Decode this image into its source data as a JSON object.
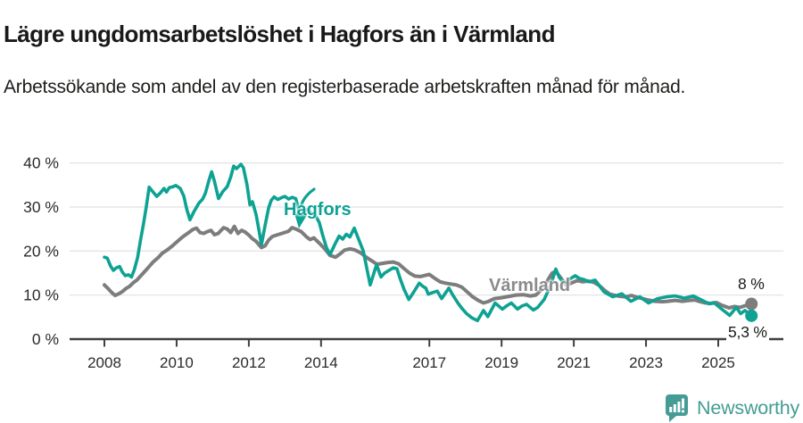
{
  "chart_data": {
    "type": "line",
    "title": "Lägre ungdomsarbetslöshet i Hagfors än i Värmland",
    "subtitle": "Arbetssökande som andel av den registerbaserade arbetskraften månad för månad.",
    "unit": "percent",
    "grid": "horizontal",
    "legend": "inline-labels-on-chart",
    "x_axis": {
      "range": [
        2008,
        2026.3
      ],
      "tick_years": [
        2008,
        2010,
        2012,
        2014,
        2017,
        2019,
        2021,
        2023,
        2025
      ],
      "tick_labels": [
        "2008",
        "2010",
        "2012",
        "2014",
        "2017",
        "2019",
        "2021",
        "2023",
        "2025"
      ]
    },
    "y_axis": {
      "range": [
        0,
        40
      ],
      "tick_values": [
        0,
        10,
        20,
        30,
        40
      ],
      "tick_labels": [
        "0 %",
        "10 %",
        "20 %",
        "30 %",
        "40 %"
      ]
    },
    "series": [
      {
        "name": "Hagfors",
        "color": "#0ea293",
        "label_color": "#0ea293",
        "end_label": "5,3 %",
        "last_value": 5.3,
        "points": [
          [
            2008.0,
            18.6
          ],
          [
            2008.08,
            18.4
          ],
          [
            2008.17,
            16.6
          ],
          [
            2008.25,
            15.6
          ],
          [
            2008.33,
            16.2
          ],
          [
            2008.42,
            16.5
          ],
          [
            2008.5,
            15.2
          ],
          [
            2008.58,
            14.4
          ],
          [
            2008.67,
            14.6
          ],
          [
            2008.75,
            14.1
          ],
          [
            2008.83,
            15.8
          ],
          [
            2008.92,
            18.5
          ],
          [
            2009.0,
            22.5
          ],
          [
            2009.08,
            26.0
          ],
          [
            2009.16,
            30.0
          ],
          [
            2009.24,
            34.5
          ],
          [
            2009.33,
            33.6
          ],
          [
            2009.45,
            32.4
          ],
          [
            2009.55,
            33.2
          ],
          [
            2009.65,
            34.2
          ],
          [
            2009.72,
            33.4
          ],
          [
            2009.8,
            34.4
          ],
          [
            2009.9,
            34.6
          ],
          [
            2009.98,
            34.9
          ],
          [
            2010.1,
            34.2
          ],
          [
            2010.2,
            32.5
          ],
          [
            2010.28,
            29.5
          ],
          [
            2010.37,
            27.1
          ],
          [
            2010.47,
            28.8
          ],
          [
            2010.62,
            30.9
          ],
          [
            2010.72,
            31.8
          ],
          [
            2010.8,
            33.2
          ],
          [
            2010.9,
            36.2
          ],
          [
            2010.97,
            38.0
          ],
          [
            2011.05,
            35.8
          ],
          [
            2011.16,
            31.9
          ],
          [
            2011.28,
            33.5
          ],
          [
            2011.4,
            34.6
          ],
          [
            2011.5,
            36.8
          ],
          [
            2011.58,
            39.3
          ],
          [
            2011.66,
            38.7
          ],
          [
            2011.78,
            39.7
          ],
          [
            2011.85,
            38.9
          ],
          [
            2011.95,
            35.0
          ],
          [
            2012.03,
            30.5
          ],
          [
            2012.1,
            31.2
          ],
          [
            2012.2,
            28.3
          ],
          [
            2012.28,
            24.8
          ],
          [
            2012.35,
            21.4
          ],
          [
            2012.45,
            25.8
          ],
          [
            2012.55,
            29.8
          ],
          [
            2012.62,
            31.5
          ],
          [
            2012.7,
            32.3
          ],
          [
            2012.8,
            31.7
          ],
          [
            2012.9,
            32.1
          ],
          [
            2013.0,
            32.4
          ],
          [
            2013.1,
            31.8
          ],
          [
            2013.2,
            32.2
          ],
          [
            2013.3,
            31.9
          ],
          [
            2013.44,
            27.6
          ],
          [
            2013.55,
            29.2
          ],
          [
            2013.65,
            29.4
          ],
          [
            2013.75,
            28.4
          ],
          [
            2013.85,
            28.0
          ],
          [
            2013.95,
            26.5
          ],
          [
            2014.05,
            23.5
          ],
          [
            2014.15,
            20.8
          ],
          [
            2014.25,
            19.2
          ],
          [
            2014.4,
            21.8
          ],
          [
            2014.5,
            23.4
          ],
          [
            2014.6,
            22.7
          ],
          [
            2014.7,
            23.8
          ],
          [
            2014.8,
            23.2
          ],
          [
            2014.92,
            25.2
          ],
          [
            2015.05,
            22.5
          ],
          [
            2015.17,
            20.0
          ],
          [
            2015.36,
            12.3
          ],
          [
            2015.54,
            16.9
          ],
          [
            2015.66,
            14.1
          ],
          [
            2015.76,
            15.0
          ],
          [
            2015.86,
            15.5
          ],
          [
            2016.0,
            16.2
          ],
          [
            2016.1,
            16.0
          ],
          [
            2016.2,
            13.5
          ],
          [
            2016.3,
            11.3
          ],
          [
            2016.43,
            9.0
          ],
          [
            2016.56,
            10.6
          ],
          [
            2016.72,
            12.7
          ],
          [
            2016.82,
            12.0
          ],
          [
            2016.9,
            11.6
          ],
          [
            2016.97,
            10.2
          ],
          [
            2017.1,
            10.6
          ],
          [
            2017.22,
            10.9
          ],
          [
            2017.34,
            9.2
          ],
          [
            2017.45,
            10.5
          ],
          [
            2017.54,
            11.6
          ],
          [
            2017.65,
            10.0
          ],
          [
            2017.79,
            8.2
          ],
          [
            2017.9,
            7.0
          ],
          [
            2018.03,
            5.8
          ],
          [
            2018.18,
            4.8
          ],
          [
            2018.33,
            4.2
          ],
          [
            2018.5,
            6.5
          ],
          [
            2018.62,
            5.1
          ],
          [
            2018.82,
            8.2
          ],
          [
            2019.02,
            6.8
          ],
          [
            2019.15,
            7.6
          ],
          [
            2019.27,
            8.2
          ],
          [
            2019.44,
            6.8
          ],
          [
            2019.56,
            7.5
          ],
          [
            2019.69,
            7.9
          ],
          [
            2019.88,
            6.6
          ],
          [
            2020.0,
            7.2
          ],
          [
            2020.18,
            9.0
          ],
          [
            2020.35,
            12.0
          ],
          [
            2020.5,
            15.9
          ],
          [
            2020.6,
            14.0
          ],
          [
            2020.72,
            12.7
          ],
          [
            2020.92,
            13.8
          ],
          [
            2021.04,
            14.4
          ],
          [
            2021.15,
            13.8
          ],
          [
            2021.29,
            13.5
          ],
          [
            2021.42,
            13.0
          ],
          [
            2021.59,
            13.4
          ],
          [
            2021.84,
            10.7
          ],
          [
            2022.08,
            9.6
          ],
          [
            2022.33,
            10.3
          ],
          [
            2022.58,
            8.6
          ],
          [
            2022.83,
            9.6
          ],
          [
            2023.07,
            8.2
          ],
          [
            2023.32,
            9.2
          ],
          [
            2023.57,
            9.6
          ],
          [
            2023.81,
            9.8
          ],
          [
            2024.06,
            9.3
          ],
          [
            2024.31,
            9.8
          ],
          [
            2024.51,
            9.0
          ],
          [
            2024.75,
            8.0
          ],
          [
            2024.88,
            8.3
          ],
          [
            2025.07,
            7.0
          ],
          [
            2025.32,
            5.4
          ],
          [
            2025.5,
            7.2
          ],
          [
            2025.62,
            5.8
          ],
          [
            2025.74,
            6.5
          ],
          [
            2025.92,
            5.3
          ]
        ]
      },
      {
        "name": "Värmland",
        "color": "#7d7d7d",
        "label_color": "#8b8b8b",
        "end_label": "8 %",
        "last_value": 8,
        "points": [
          [
            2008.0,
            12.3
          ],
          [
            2008.1,
            11.5
          ],
          [
            2008.2,
            10.6
          ],
          [
            2008.3,
            9.9
          ],
          [
            2008.4,
            10.3
          ],
          [
            2008.5,
            10.8
          ],
          [
            2008.6,
            11.5
          ],
          [
            2008.7,
            12.0
          ],
          [
            2008.8,
            12.8
          ],
          [
            2008.9,
            13.4
          ],
          [
            2009.0,
            14.3
          ],
          [
            2009.1,
            15.2
          ],
          [
            2009.2,
            16.1
          ],
          [
            2009.35,
            17.5
          ],
          [
            2009.5,
            18.6
          ],
          [
            2009.6,
            19.5
          ],
          [
            2009.75,
            20.3
          ],
          [
            2009.9,
            21.3
          ],
          [
            2010.0,
            22.0
          ],
          [
            2010.15,
            23.1
          ],
          [
            2010.3,
            24.0
          ],
          [
            2010.45,
            24.9
          ],
          [
            2010.55,
            25.2
          ],
          [
            2010.65,
            24.2
          ],
          [
            2010.75,
            24.0
          ],
          [
            2010.85,
            24.4
          ],
          [
            2010.95,
            24.7
          ],
          [
            2011.05,
            23.7
          ],
          [
            2011.15,
            24.0
          ],
          [
            2011.3,
            25.3
          ],
          [
            2011.4,
            25.0
          ],
          [
            2011.5,
            24.2
          ],
          [
            2011.6,
            25.6
          ],
          [
            2011.7,
            24.0
          ],
          [
            2011.8,
            24.7
          ],
          [
            2011.9,
            24.3
          ],
          [
            2012.0,
            23.6
          ],
          [
            2012.1,
            22.8
          ],
          [
            2012.2,
            22.2
          ],
          [
            2012.35,
            20.8
          ],
          [
            2012.45,
            21.2
          ],
          [
            2012.55,
            22.5
          ],
          [
            2012.65,
            23.3
          ],
          [
            2012.8,
            23.7
          ],
          [
            2012.95,
            24.1
          ],
          [
            2013.1,
            24.5
          ],
          [
            2013.2,
            25.3
          ],
          [
            2013.3,
            25.0
          ],
          [
            2013.45,
            24.4
          ],
          [
            2013.6,
            23.2
          ],
          [
            2013.7,
            22.6
          ],
          [
            2013.8,
            23.0
          ],
          [
            2013.95,
            21.8
          ],
          [
            2014.1,
            20.5
          ],
          [
            2014.25,
            19.0
          ],
          [
            2014.4,
            18.6
          ],
          [
            2014.55,
            19.5
          ],
          [
            2014.65,
            20.2
          ],
          [
            2014.8,
            20.5
          ],
          [
            2014.92,
            20.3
          ],
          [
            2015.1,
            19.6
          ],
          [
            2015.25,
            18.6
          ],
          [
            2015.4,
            17.8
          ],
          [
            2015.55,
            17.0
          ],
          [
            2015.7,
            17.2
          ],
          [
            2015.85,
            17.4
          ],
          [
            2016.0,
            17.5
          ],
          [
            2016.15,
            17.1
          ],
          [
            2016.3,
            16.0
          ],
          [
            2016.45,
            15.0
          ],
          [
            2016.6,
            14.3
          ],
          [
            2016.75,
            14.2
          ],
          [
            2016.9,
            14.5
          ],
          [
            2017.0,
            14.7
          ],
          [
            2017.15,
            13.8
          ],
          [
            2017.3,
            13.0
          ],
          [
            2017.45,
            12.7
          ],
          [
            2017.6,
            12.5
          ],
          [
            2017.75,
            12.3
          ],
          [
            2017.9,
            11.8
          ],
          [
            2018.05,
            10.7
          ],
          [
            2018.2,
            9.6
          ],
          [
            2018.35,
            8.8
          ],
          [
            2018.5,
            8.2
          ],
          [
            2018.65,
            8.6
          ],
          [
            2018.8,
            9.2
          ],
          [
            2019.0,
            9.4
          ],
          [
            2019.2,
            9.7
          ],
          [
            2019.4,
            10.0
          ],
          [
            2019.6,
            10.1
          ],
          [
            2019.8,
            9.8
          ],
          [
            2019.95,
            10.0
          ],
          [
            2020.1,
            11.2
          ],
          [
            2020.25,
            13.0
          ],
          [
            2020.4,
            15.0
          ],
          [
            2020.5,
            15.4
          ],
          [
            2020.65,
            13.8
          ],
          [
            2020.8,
            12.2
          ],
          [
            2020.95,
            12.8
          ],
          [
            2021.1,
            13.3
          ],
          [
            2021.25,
            13.0
          ],
          [
            2021.4,
            13.2
          ],
          [
            2021.55,
            12.9
          ],
          [
            2021.7,
            12.2
          ],
          [
            2021.85,
            11.1
          ],
          [
            2022.0,
            10.2
          ],
          [
            2022.15,
            9.9
          ],
          [
            2022.3,
            9.7
          ],
          [
            2022.45,
            9.6
          ],
          [
            2022.6,
            9.9
          ],
          [
            2022.75,
            9.5
          ],
          [
            2022.9,
            9.2
          ],
          [
            2023.05,
            8.9
          ],
          [
            2023.25,
            8.6
          ],
          [
            2023.45,
            8.5
          ],
          [
            2023.6,
            8.6
          ],
          [
            2023.8,
            8.8
          ],
          [
            2024.0,
            8.6
          ],
          [
            2024.2,
            8.8
          ],
          [
            2024.35,
            8.9
          ],
          [
            2024.5,
            8.5
          ],
          [
            2024.65,
            8.2
          ],
          [
            2024.8,
            8.1
          ],
          [
            2024.95,
            8.3
          ],
          [
            2025.1,
            7.7
          ],
          [
            2025.3,
            7.1
          ],
          [
            2025.45,
            7.4
          ],
          [
            2025.6,
            7.2
          ],
          [
            2025.75,
            7.6
          ],
          [
            2025.92,
            8.0
          ]
        ]
      }
    ],
    "colors": {
      "gridline": "#e4e4e4",
      "axis": "#3f3f3f",
      "tick_text": "#2b2b2b"
    }
  },
  "branding": {
    "name": "Newsworthy",
    "color": "#459c95"
  }
}
